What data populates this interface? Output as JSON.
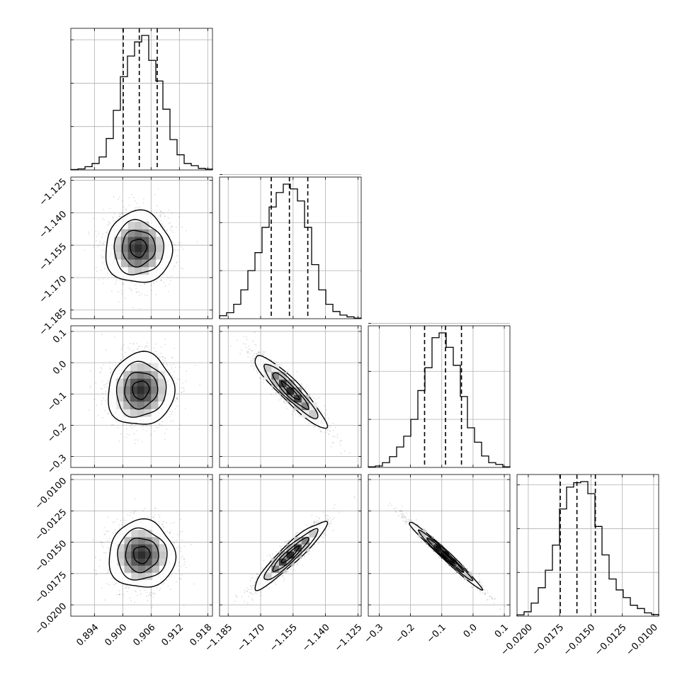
{
  "chart_data": {
    "type": "corner",
    "parameters": [
      {
        "range": [
          0.889,
          0.919
        ],
        "ticks": [
          0.894,
          0.9,
          0.906,
          0.912,
          0.918
        ],
        "tick_labels": [
          "0.894",
          "0.900",
          "0.906",
          "0.912",
          "0.918"
        ],
        "quantiles": [
          0.9001,
          0.9035,
          0.9073
        ],
        "histogram": {
          "start": 0.889,
          "bin_width": 0.0015,
          "counts": [
            4,
            10,
            30,
            60,
            120,
            290,
            550,
            860,
            1050,
            1180,
            1240,
            1010,
            820,
            560,
            280,
            140,
            60,
            40,
            15,
            8
          ]
        },
        "y_ticks": [
          400,
          800,
          1200
        ]
      },
      {
        "range": [
          -1.189,
          -1.1235
        ],
        "ticks": [
          -1.185,
          -1.17,
          -1.155,
          -1.14,
          -1.125
        ],
        "tick_labels": [
          "−1.185",
          "−1.170",
          "−1.155",
          "−1.140",
          "−1.125"
        ],
        "quantiles": [
          -1.1651,
          -1.1567,
          -1.1482
        ],
        "histogram": {
          "start": -1.189,
          "bin_width": 0.003275,
          "counts": [
            25,
            50,
            120,
            240,
            400,
            550,
            760,
            930,
            1050,
            1120,
            1080,
            980,
            760,
            450,
            240,
            120,
            60,
            30,
            15,
            5
          ]
        },
        "y_ticks": [
          400,
          800,
          1200
        ]
      },
      {
        "range": [
          -0.335,
          0.118
        ],
        "ticks": [
          -0.3,
          -0.2,
          -0.1,
          0.0,
          0.1
        ],
        "tick_labels": [
          "−0.3",
          "−0.2",
          "−0.1",
          "0.0",
          "0.1"
        ],
        "quantiles": [
          -0.155,
          -0.088,
          -0.037
        ],
        "histogram": {
          "start": -0.335,
          "bin_width": 0.02265,
          "counts": [
            5,
            12,
            40,
            90,
            170,
            260,
            400,
            640,
            830,
            1080,
            1120,
            1000,
            850,
            590,
            330,
            210,
            95,
            40,
            25,
            5
          ]
        },
        "y_ticks": [
          400,
          800,
          1200
        ]
      },
      {
        "range": [
          -0.0209,
          -0.0096
        ],
        "ticks": [
          -0.02,
          -0.0175,
          -0.015,
          -0.0125,
          -0.01
        ],
        "tick_labels": [
          "−0.0200",
          "−0.0175",
          "−0.0150",
          "−0.0125",
          "−0.0100"
        ],
        "quantiles": [
          -0.01745,
          -0.01612,
          -0.01465
        ],
        "histogram": {
          "start": -0.0209,
          "bin_width": 0.000565,
          "counts": [
            12,
            40,
            120,
            260,
            420,
            650,
            980,
            1180,
            1220,
            1230,
            1120,
            820,
            560,
            340,
            240,
            170,
            100,
            70,
            30,
            15
          ]
        },
        "y_ticks": [
          400,
          800,
          1200
        ]
      }
    ],
    "contour_pairs": [
      {
        "x_param": 0,
        "y_param": 1,
        "center": [
          0.9033,
          -1.1563
        ],
        "sigma": [
          0.0035,
          0.0083
        ],
        "rho": 0.0
      },
      {
        "x_param": 0,
        "y_param": 2,
        "center": [
          0.9038,
          -0.087
        ],
        "sigma": [
          0.0035,
          0.058
        ],
        "rho": 0.05
      },
      {
        "x_param": 1,
        "y_param": 2,
        "center": [
          -1.1563,
          -0.09
        ],
        "sigma": [
          0.0083,
          0.058
        ],
        "rho": -0.92
      },
      {
        "x_param": 0,
        "y_param": 3,
        "center": [
          0.904,
          -0.016
        ],
        "sigma": [
          0.0035,
          0.00135
        ],
        "rho": 0.0
      },
      {
        "x_param": 1,
        "y_param": 3,
        "center": [
          -1.1563,
          -0.016
        ],
        "sigma": [
          0.0083,
          0.00135
        ],
        "rho": 0.93
      },
      {
        "x_param": 2,
        "y_param": 3,
        "center": [
          -0.09,
          -0.016
        ],
        "sigma": [
          0.058,
          0.00135
        ],
        "rho": -0.985
      }
    ],
    "contour_levels_sigma": [
      0.5,
      1.0,
      1.5,
      2.0
    ],
    "grid": true,
    "quantile_line_style": "dashed",
    "title": "",
    "xlabel": "",
    "ylabel": ""
  }
}
